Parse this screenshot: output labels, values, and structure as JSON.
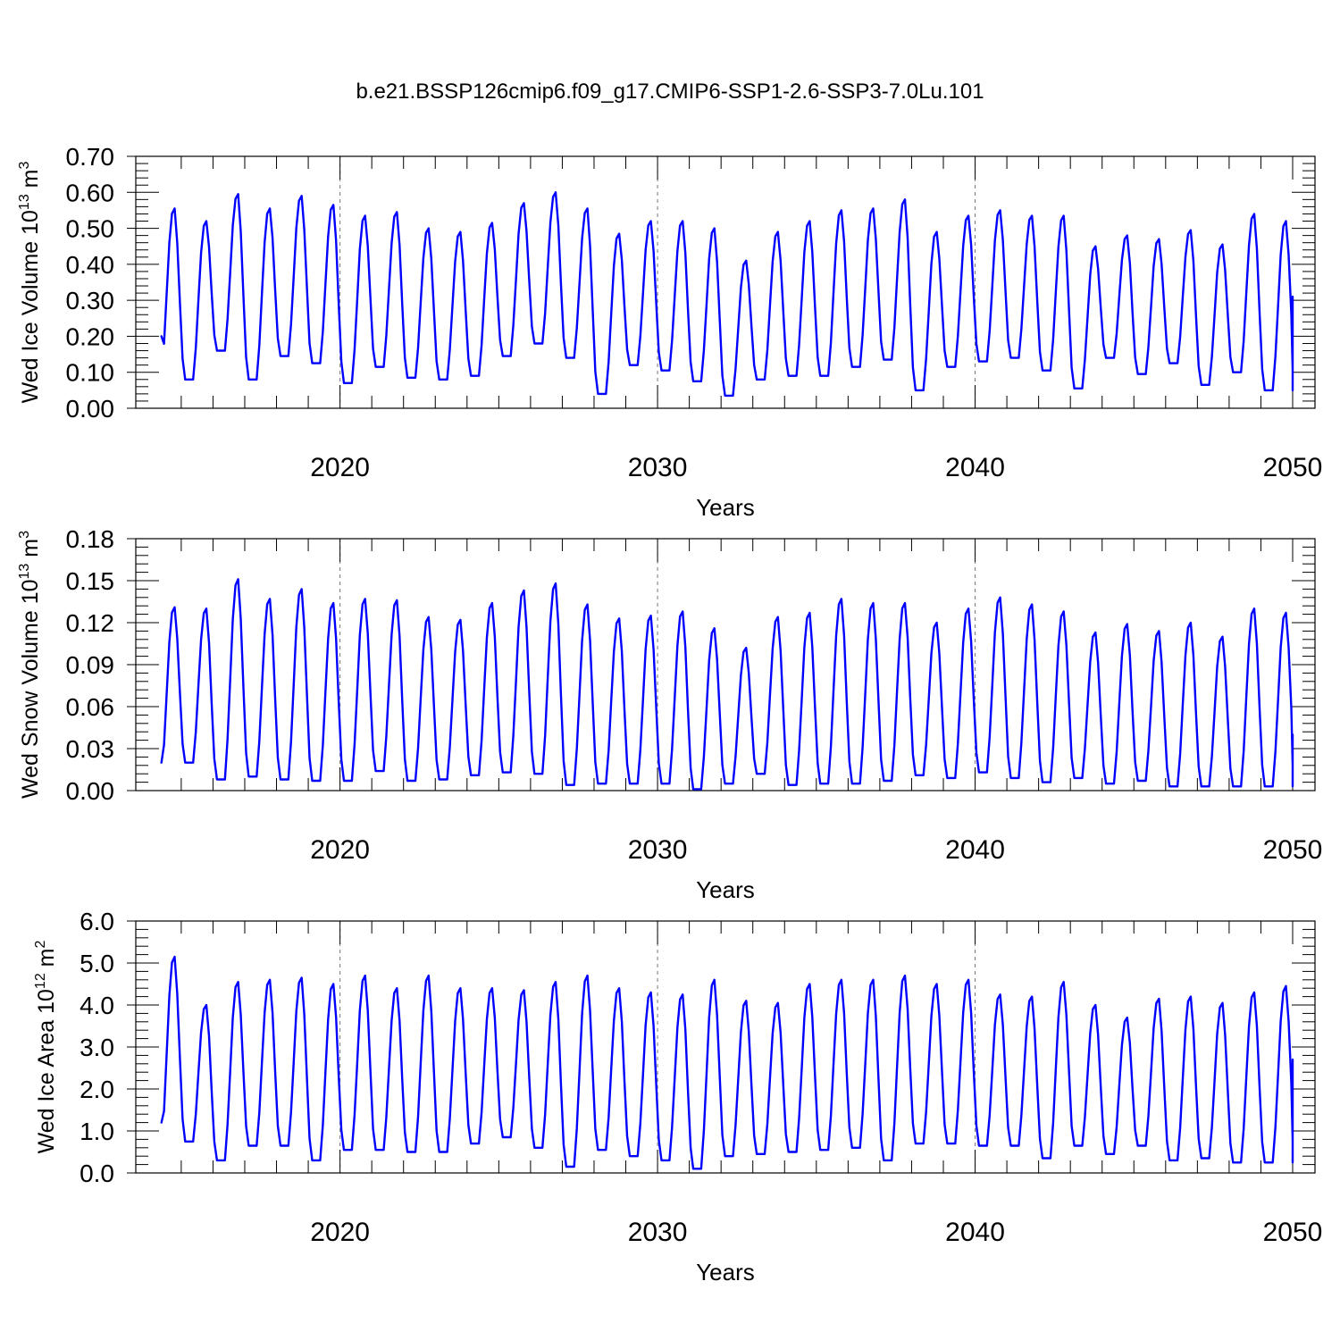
{
  "title": "b.e21.BSSP126cmip6.f09_g17.CMIP6-SSP1-2.6-SSP3-7.0Lu.101",
  "series_color": "#0000ff",
  "chart_data": [
    {
      "type": "line",
      "title": "",
      "xlabel": "Years",
      "ylabel": {
        "prefix": "Wed Ice Volume 10",
        "exp": "13",
        "unit": " m",
        "unit_exp": "3"
      },
      "xlim": [
        2014.3,
        2050.0
      ],
      "ylim": [
        0.0,
        0.7
      ],
      "x_ticks": [
        "2020",
        "2030",
        "2040",
        "2050"
      ],
      "x_tick_values": [
        2020,
        2030,
        2040,
        2050
      ],
      "y_ticks": [
        "0.00",
        "0.10",
        "0.20",
        "0.30",
        "0.40",
        "0.50",
        "0.60",
        "0.70"
      ],
      "y_tick_values": [
        0.0,
        0.1,
        0.2,
        0.3,
        0.4,
        0.5,
        0.6,
        0.7
      ],
      "reference_lines_x": [
        2020,
        2030,
        2040
      ],
      "grid": false,
      "series": [
        {
          "start_year": 2014.375,
          "step": 0.08333,
          "minima": [
            0.085,
            0.08,
            0.16,
            0.08,
            0.145,
            0.125,
            0.07,
            0.115,
            0.085,
            0.08,
            0.09,
            0.145,
            0.18,
            0.14,
            0.04,
            0.12,
            0.105,
            0.075,
            0.035,
            0.08,
            0.09,
            0.09,
            0.115,
            0.135,
            0.05,
            0.115,
            0.13,
            0.14,
            0.105,
            0.055,
            0.14,
            0.095,
            0.125,
            0.065,
            0.1,
            0.05
          ],
          "maxima": [
            0.555,
            0.52,
            0.595,
            0.555,
            0.59,
            0.565,
            0.535,
            0.545,
            0.5,
            0.49,
            0.515,
            0.57,
            0.6,
            0.555,
            0.485,
            0.52,
            0.52,
            0.5,
            0.41,
            0.49,
            0.52,
            0.55,
            0.555,
            0.58,
            0.49,
            0.535,
            0.55,
            0.535,
            0.535,
            0.45,
            0.48,
            0.47,
            0.495,
            0.455,
            0.54,
            0.52
          ],
          "first_value": 0.2,
          "last_value": 0.31,
          "values": []
        }
      ]
    },
    {
      "type": "line",
      "title": "",
      "xlabel": "Years",
      "ylabel": {
        "prefix": "Wed Snow Volume 10",
        "exp": "13",
        "unit": " m",
        "unit_exp": "3"
      },
      "xlim": [
        2014.3,
        2050.0
      ],
      "ylim": [
        0.0,
        0.18
      ],
      "x_ticks": [
        "2020",
        "2030",
        "2040",
        "2050"
      ],
      "x_tick_values": [
        2020,
        2030,
        2040,
        2050
      ],
      "y_ticks": [
        "0.00",
        "0.03",
        "0.06",
        "0.09",
        "0.12",
        "0.15",
        "0.18"
      ],
      "y_tick_values": [
        0.0,
        0.03,
        0.06,
        0.09,
        0.12,
        0.15,
        0.18
      ],
      "reference_lines_x": [
        2020,
        2030,
        2040
      ],
      "grid": false,
      "series": [
        {
          "start_year": 2014.375,
          "step": 0.08333,
          "minima": [
            0.008,
            0.02,
            0.008,
            0.01,
            0.008,
            0.007,
            0.007,
            0.014,
            0.007,
            0.008,
            0.011,
            0.013,
            0.012,
            0.004,
            0.005,
            0.005,
            0.005,
            0.001,
            0.005,
            0.012,
            0.004,
            0.005,
            0.005,
            0.007,
            0.011,
            0.009,
            0.013,
            0.009,
            0.006,
            0.009,
            0.005,
            0.007,
            0.003,
            0.003,
            0.003,
            0.003
          ],
          "maxima": [
            0.131,
            0.13,
            0.151,
            0.137,
            0.144,
            0.134,
            0.137,
            0.136,
            0.124,
            0.122,
            0.134,
            0.143,
            0.148,
            0.133,
            0.123,
            0.125,
            0.128,
            0.116,
            0.102,
            0.124,
            0.127,
            0.137,
            0.134,
            0.134,
            0.12,
            0.13,
            0.138,
            0.133,
            0.128,
            0.113,
            0.119,
            0.114,
            0.12,
            0.11,
            0.13,
            0.127
          ],
          "first_value": 0.02,
          "last_value": 0.04,
          "values": []
        }
      ]
    },
    {
      "type": "line",
      "title": "",
      "xlabel": "Years",
      "ylabel": {
        "prefix": "Wed Ice Area 10",
        "exp": "12",
        "unit": " m",
        "unit_exp": "2"
      },
      "xlim": [
        2014.3,
        2050.0
      ],
      "ylim": [
        0.0,
        6.0
      ],
      "x_ticks": [
        "2020",
        "2030",
        "2040",
        "2050"
      ],
      "x_tick_values": [
        2020,
        2030,
        2040,
        2050
      ],
      "y_ticks": [
        "0.0",
        "1.0",
        "2.0",
        "3.0",
        "4.0",
        "5.0",
        "6.0"
      ],
      "y_tick_values": [
        0.0,
        1.0,
        2.0,
        3.0,
        4.0,
        5.0,
        6.0
      ],
      "reference_lines_x": [
        2020,
        2030,
        2040
      ],
      "grid": false,
      "series": [
        {
          "start_year": 2014.375,
          "step": 0.08333,
          "minima": [
            0.55,
            0.75,
            0.3,
            0.65,
            0.65,
            0.3,
            0.55,
            0.55,
            0.5,
            0.5,
            0.7,
            0.85,
            0.6,
            0.15,
            0.55,
            0.4,
            0.3,
            0.1,
            0.4,
            0.45,
            0.5,
            0.55,
            0.6,
            0.3,
            0.7,
            0.7,
            0.65,
            0.65,
            0.35,
            0.65,
            0.45,
            0.65,
            0.3,
            0.35,
            0.25,
            0.25
          ],
          "maxima": [
            5.15,
            4.0,
            4.55,
            4.6,
            4.65,
            4.5,
            4.7,
            4.4,
            4.7,
            4.4,
            4.4,
            4.35,
            4.55,
            4.7,
            4.4,
            4.3,
            4.25,
            4.6,
            4.1,
            4.05,
            4.5,
            4.6,
            4.6,
            4.7,
            4.5,
            4.6,
            4.25,
            4.2,
            4.55,
            4.0,
            3.7,
            4.15,
            4.2,
            4.05,
            4.3,
            4.45
          ],
          "first_value": 1.2,
          "last_value": 2.7,
          "values": []
        }
      ]
    }
  ]
}
